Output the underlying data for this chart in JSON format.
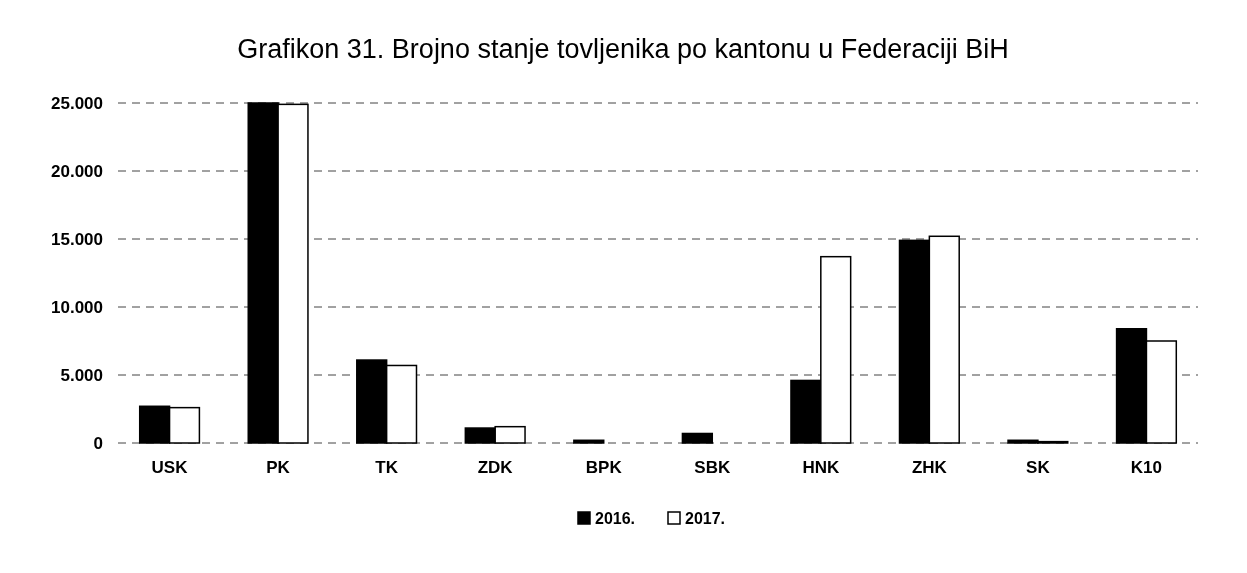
{
  "chart_data": {
    "type": "bar",
    "title": "Grafikon 31. Brojno stanje tovljenika po kantonu u Federaciji BiH",
    "categories": [
      "USK",
      "PK",
      "TK",
      "ZDK",
      "BPK",
      "SBK",
      "HNK",
      "ZHK",
      "SK",
      "K10"
    ],
    "series": [
      {
        "name": "2016.",
        "color": "#000000",
        "values": [
          2700,
          25000,
          6100,
          1100,
          200,
          700,
          4600,
          14900,
          200,
          8400
        ]
      },
      {
        "name": "2017.",
        "color": "#ffffff",
        "values": [
          2600,
          24900,
          5700,
          1200,
          0,
          0,
          13700,
          15200,
          100,
          7500
        ]
      }
    ],
    "ylim": [
      0,
      25000
    ],
    "yticks": [
      {
        "value": 0,
        "label": "0"
      },
      {
        "value": 5000,
        "label": "5.000"
      },
      {
        "value": 10000,
        "label": "10.000"
      },
      {
        "value": 15000,
        "label": "15.000"
      },
      {
        "value": 20000,
        "label": "20.000"
      },
      {
        "value": 25000,
        "label": "25.000"
      }
    ],
    "grid": "y",
    "legend": "bottom"
  }
}
